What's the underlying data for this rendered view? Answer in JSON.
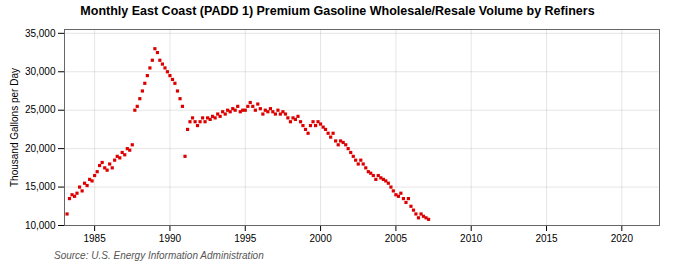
{
  "chart_data": {
    "type": "scatter",
    "title": "Monthly East Coast (PADD 1) Premium Gasoline Wholesale/Resale Volume by Refiners",
    "ylabel": "Thousand Gallons per Day",
    "annotations": [
      "Source: U.S. Energy Information Administration"
    ],
    "color": "#DD0000",
    "marker": "square",
    "grid": true,
    "xlim": [
      1983.0,
      2022.5
    ],
    "ylim": [
      10000,
      35500
    ],
    "xticks": [
      1985,
      1990,
      1995,
      2000,
      2005,
      2010,
      2015,
      2020
    ],
    "yticks": [
      {
        "value": 10000,
        "label": "10,000"
      },
      {
        "value": 15000,
        "label": "15,000"
      },
      {
        "value": 20000,
        "label": "20,000"
      },
      {
        "value": 25000,
        "label": "25,000"
      },
      {
        "value": 30000,
        "label": "30,000"
      },
      {
        "value": 35000,
        "label": "35,000"
      }
    ],
    "x": [
      1983.17,
      1983.33,
      1983.5,
      1983.67,
      1983.83,
      1984.0,
      1984.17,
      1984.33,
      1984.5,
      1984.67,
      1984.83,
      1985.0,
      1985.17,
      1985.33,
      1985.5,
      1985.67,
      1985.83,
      1986.0,
      1986.17,
      1986.33,
      1986.5,
      1986.67,
      1986.83,
      1987.0,
      1987.17,
      1987.33,
      1987.5,
      1987.67,
      1987.83,
      1988.0,
      1988.17,
      1988.33,
      1988.5,
      1988.67,
      1988.83,
      1989.0,
      1989.17,
      1989.33,
      1989.5,
      1989.67,
      1989.83,
      1990.0,
      1990.17,
      1990.33,
      1990.5,
      1990.67,
      1990.83,
      1991.0,
      1991.17,
      1991.33,
      1991.5,
      1991.67,
      1991.83,
      1992.0,
      1992.17,
      1992.33,
      1992.5,
      1992.67,
      1992.83,
      1993.0,
      1993.17,
      1993.33,
      1993.5,
      1993.67,
      1993.83,
      1994.0,
      1994.17,
      1994.33,
      1994.5,
      1994.67,
      1994.83,
      1995.0,
      1995.17,
      1995.33,
      1995.5,
      1995.67,
      1995.83,
      1996.0,
      1996.17,
      1996.33,
      1996.5,
      1996.67,
      1996.83,
      1997.0,
      1997.17,
      1997.33,
      1997.5,
      1997.67,
      1997.83,
      1998.0,
      1998.17,
      1998.33,
      1998.5,
      1998.67,
      1998.83,
      1999.0,
      1999.17,
      1999.33,
      1999.5,
      1999.67,
      1999.83,
      2000.0,
      2000.17,
      2000.33,
      2000.5,
      2000.67,
      2000.83,
      2001.0,
      2001.17,
      2001.33,
      2001.5,
      2001.67,
      2001.83,
      2002.0,
      2002.17,
      2002.33,
      2002.5,
      2002.67,
      2002.83,
      2003.0,
      2003.17,
      2003.33,
      2003.5,
      2003.67,
      2003.83,
      2004.0,
      2004.17,
      2004.33,
      2004.5,
      2004.67,
      2004.83,
      2005.0,
      2005.17,
      2005.33,
      2005.5,
      2005.67,
      2005.83,
      2006.0,
      2006.17,
      2006.33,
      2006.5,
      2006.67,
      2006.83,
      2007.0,
      2007.17
    ],
    "values": [
      11500,
      13500,
      14000,
      13800,
      14200,
      15000,
      14500,
      15500,
      15200,
      16000,
      15800,
      16500,
      17000,
      17800,
      18200,
      17500,
      17200,
      18000,
      17500,
      18500,
      19000,
      18800,
      19500,
      19200,
      20000,
      19800,
      20500,
      25000,
      25500,
      26500,
      27500,
      28500,
      29500,
      30500,
      31500,
      33000,
      32500,
      31500,
      31000,
      30500,
      30000,
      29500,
      29000,
      28500,
      27500,
      26500,
      25500,
      19000,
      22500,
      23500,
      24000,
      23500,
      23000,
      23500,
      24000,
      23500,
      24000,
      23800,
      24200,
      24000,
      24500,
      24200,
      24800,
      24500,
      25000,
      24800,
      25200,
      25000,
      25500,
      24800,
      25000,
      25000,
      25500,
      26000,
      25500,
      25000,
      25800,
      25200,
      24500,
      25000,
      24800,
      25200,
      24800,
      24500,
      25000,
      24500,
      24800,
      24500,
      24000,
      23500,
      24000,
      23800,
      24200,
      23500,
      23000,
      22500,
      22000,
      23000,
      23500,
      23000,
      23500,
      23200,
      22800,
      22500,
      22000,
      21500,
      22000,
      21000,
      20500,
      21000,
      20800,
      20500,
      20000,
      19500,
      19000,
      18500,
      18000,
      18500,
      18000,
      17500,
      17000,
      16800,
      16500,
      16000,
      16500,
      16200,
      16000,
      15800,
      15500,
      15000,
      14500,
      14000,
      13800,
      14200,
      13500,
      13000,
      13500,
      12500,
      12000,
      11500,
      11000,
      11500,
      11200,
      11000,
      10800
    ]
  }
}
